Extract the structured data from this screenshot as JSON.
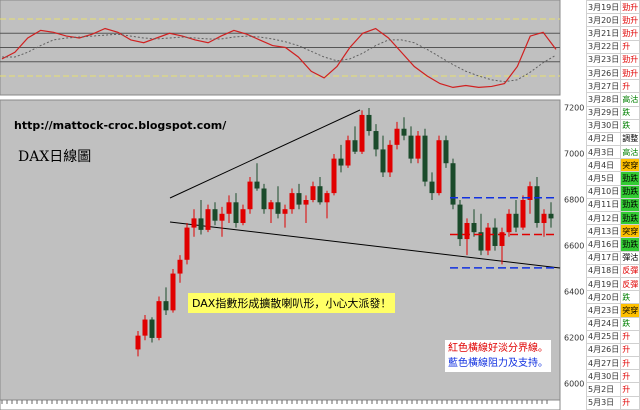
{
  "chart_data": [
    {
      "type": "line",
      "ylim": [
        0,
        100
      ],
      "hlines": [
        {
          "value": 80,
          "color": "#e8e070"
        },
        {
          "value": 65,
          "color": "#555555"
        },
        {
          "value": 50,
          "color": "#555555"
        },
        {
          "value": 35,
          "color": "#555555"
        },
        {
          "value": 20,
          "color": "#e8e070"
        }
      ],
      "series": [
        {
          "color": "#d02020",
          "values": [
            38,
            45,
            60,
            68,
            66,
            62,
            60,
            64,
            70,
            66,
            58,
            55,
            60,
            65,
            62,
            58,
            55,
            62,
            68,
            64,
            58,
            52,
            50,
            40,
            25,
            18,
            30,
            50,
            65,
            70,
            60,
            45,
            30,
            20,
            12,
            8,
            10,
            8,
            9,
            12,
            30,
            62,
            66,
            48
          ]
        },
        {
          "color": "#606060",
          "values": [
            40,
            40,
            45,
            52,
            58,
            60,
            61,
            62,
            63,
            64,
            62,
            60,
            59,
            60,
            61,
            60,
            59,
            59,
            61,
            62,
            61,
            59,
            56,
            52,
            46,
            40,
            36,
            38,
            44,
            52,
            58,
            58,
            55,
            48,
            40,
            32,
            25,
            20,
            16,
            14,
            16,
            24,
            34,
            42
          ]
        }
      ]
    },
    {
      "type": "candlestick",
      "url": "http://mattock-croc.blogspot.com/",
      "title": "DAX日線圖",
      "annotation": "DAX指數形成擴散喇叭形，小心大派發！",
      "notes": [
        "紅色橫線好淡分界線。",
        "藍色橫線阻力及支持。"
      ],
      "ylim": [
        5930,
        7235
      ],
      "yticks": [
        6000,
        6200,
        6400,
        6600,
        6800,
        7000,
        7200
      ],
      "up_color": "#e00000",
      "down_color": "#1a4a2a",
      "hlines": [
        {
          "value": 6810,
          "color": "#1030e0"
        },
        {
          "value": 6650,
          "color": "#e00000"
        },
        {
          "value": 6505,
          "color": "#1030e0"
        }
      ],
      "open": [
        6150,
        6210,
        6280,
        6200,
        6360,
        6320,
        6480,
        6540,
        6680,
        6720,
        6670,
        6760,
        6710,
        6740,
        6790,
        6700,
        6760,
        6880,
        6850,
        6760,
        6790,
        6740,
        6760,
        6830,
        6780,
        6800,
        6860,
        6790,
        6830,
        6980,
        6950,
        7060,
        7010,
        7170,
        7100,
        7020,
        6920,
        7040,
        7110,
        7080,
        6980,
        7080,
        6880,
        6830,
        7060,
        6960,
        6780,
        6630,
        6700,
        6660,
        6580,
        6680,
        6600,
        6660,
        6740,
        6680,
        6800,
        6860,
        6700,
        6740
      ],
      "high": [
        6230,
        6300,
        6290,
        6380,
        6420,
        6500,
        6560,
        6700,
        6760,
        6800,
        6780,
        6790,
        6770,
        6820,
        6830,
        6780,
        6900,
        6960,
        6870,
        6800,
        6860,
        6780,
        6850,
        6870,
        6820,
        6880,
        6900,
        6840,
        7000,
        7040,
        7080,
        7120,
        7190,
        7200,
        7130,
        7080,
        7060,
        7140,
        7160,
        7120,
        7100,
        7110,
        6920,
        7080,
        7080,
        6980,
        6800,
        6720,
        6760,
        6740,
        6700,
        6720,
        6680,
        6760,
        6800,
        6820,
        6880,
        6900,
        6760,
        6790
      ],
      "low": [
        6120,
        6190,
        6180,
        6190,
        6300,
        6310,
        6440,
        6520,
        6640,
        6650,
        6660,
        6690,
        6640,
        6700,
        6680,
        6690,
        6740,
        6840,
        6740,
        6700,
        6720,
        6680,
        6740,
        6760,
        6700,
        6790,
        6780,
        6720,
        6820,
        6920,
        6940,
        7000,
        7000,
        7080,
        6990,
        6900,
        6900,
        7020,
        7060,
        6960,
        6960,
        6860,
        6800,
        6820,
        6940,
        6760,
        6600,
        6560,
        6640,
        6560,
        6560,
        6580,
        6520,
        6640,
        6660,
        6670,
        6740,
        6680,
        6640,
        6680
      ],
      "close": [
        6210,
        6280,
        6200,
        6360,
        6320,
        6480,
        6540,
        6680,
        6720,
        6670,
        6760,
        6710,
        6740,
        6790,
        6700,
        6760,
        6880,
        6850,
        6760,
        6790,
        6740,
        6760,
        6830,
        6780,
        6800,
        6860,
        6790,
        6830,
        6980,
        6950,
        7060,
        7010,
        7170,
        7100,
        7020,
        6920,
        7040,
        7110,
        7080,
        6980,
        7080,
        6880,
        6830,
        7060,
        6960,
        6780,
        6630,
        6700,
        6660,
        6580,
        6680,
        6600,
        6660,
        6740,
        6680,
        6800,
        6860,
        6700,
        6740,
        6720
      ]
    }
  ],
  "side_table": {
    "rows": [
      {
        "date": "3月19日",
        "label": "勁升",
        "color": "#e00000"
      },
      {
        "date": "3月20日",
        "label": "勁升",
        "color": "#e00000"
      },
      {
        "date": "3月21日",
        "label": "勁升",
        "color": "#e00000"
      },
      {
        "date": "3月22日",
        "label": "升",
        "color": "#e00000"
      },
      {
        "date": "3月23日",
        "label": "勁升",
        "color": "#e00000"
      },
      {
        "date": "3月26日",
        "label": "勁升",
        "color": "#e00000"
      },
      {
        "date": "3月27日",
        "label": "升",
        "color": "#e00000"
      },
      {
        "date": "3月28日",
        "label": "高沽",
        "color": "#008000"
      },
      {
        "date": "3月29日",
        "label": "跌",
        "color": "#008000"
      },
      {
        "date": "3月30日",
        "label": "跌",
        "color": "#008000"
      },
      {
        "date": "4月2日",
        "label": "調整",
        "color": "#000000"
      },
      {
        "date": "4月3日",
        "label": "高沽",
        "color": "#008000"
      },
      {
        "date": "4月4日",
        "label": "突穿",
        "color": "#000000",
        "background": "#ffc000"
      },
      {
        "date": "4月5日",
        "label": "勁跌",
        "color": "#000000",
        "background": "#33cc33"
      },
      {
        "date": "4月10日",
        "label": "勁跌",
        "color": "#000000",
        "background": "#33cc33"
      },
      {
        "date": "4月11日",
        "label": "勁跌",
        "color": "#000000",
        "background": "#33cc33"
      },
      {
        "date": "4月12日",
        "label": "勁跌",
        "color": "#000000",
        "background": "#33cc33"
      },
      {
        "date": "4月13日",
        "label": "突穿",
        "color": "#000000",
        "background": "#ffc000"
      },
      {
        "date": "4月16日",
        "label": "勁跌",
        "color": "#000000",
        "background": "#33cc33"
      },
      {
        "date": "4月17日",
        "label": "彈沽",
        "color": "#000000"
      },
      {
        "date": "4月18日",
        "label": "反彈",
        "color": "#e00000"
      },
      {
        "date": "4月19日",
        "label": "反彈",
        "color": "#e00000"
      },
      {
        "date": "4月20日",
        "label": "跌",
        "color": "#008000"
      },
      {
        "date": "4月23日",
        "label": "突穿",
        "color": "#000000",
        "background": "#ffc000"
      },
      {
        "date": "4月24日",
        "label": "跌",
        "color": "#008000"
      },
      {
        "date": "4月25日",
        "label": "升",
        "color": "#e00000"
      },
      {
        "date": "4月26日",
        "label": "升",
        "color": "#e00000"
      },
      {
        "date": "4月27日",
        "label": "升",
        "color": "#e00000"
      },
      {
        "date": "4月30日",
        "label": "升",
        "color": "#e00000"
      },
      {
        "date": "5月2日",
        "label": "升",
        "color": "#e00000"
      },
      {
        "date": "5月3日",
        "label": "升",
        "color": "#e00000"
      }
    ]
  }
}
